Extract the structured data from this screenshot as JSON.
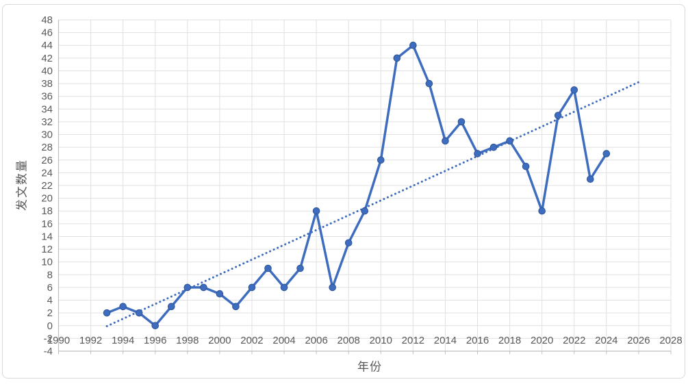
{
  "chart_data": {
    "type": "line",
    "title": "",
    "xlabel": "年份",
    "ylabel": "发文数量",
    "x": [
      1993,
      1994,
      1995,
      1996,
      1997,
      1998,
      1999,
      2000,
      2001,
      2002,
      2003,
      2004,
      2005,
      2006,
      2007,
      2008,
      2009,
      2010,
      2011,
      2012,
      2013,
      2014,
      2015,
      2016,
      2017,
      2018,
      2019,
      2020,
      2021,
      2022,
      2023,
      2024
    ],
    "series": [
      {
        "name": "发文数量",
        "values": [
          2,
          3,
          2,
          0,
          3,
          6,
          6,
          5,
          3,
          6,
          9,
          6,
          9,
          18,
          6,
          13,
          18,
          26,
          42,
          44,
          38,
          29,
          32,
          27,
          28,
          29,
          25,
          18,
          33,
          37,
          23,
          27
        ]
      }
    ],
    "trendline": {
      "type": "linear",
      "style": "dotted",
      "x": [
        1993,
        2026
      ],
      "y": [
        -0.08,
        38.22
      ]
    },
    "xlim": [
      1990,
      2028
    ],
    "ylim": [
      -4,
      48
    ],
    "x_tick_step": 2,
    "y_tick_step": 2,
    "grid": true,
    "legend": "none",
    "colors": {
      "series": "#3E6CBE",
      "marker_fill": "#3E6CBE",
      "marker_edge": "#2E5597",
      "trend": "#3E6CBE",
      "grid": "#E0E0E0",
      "axis": "#BFBFBF",
      "tick_label": "#595959",
      "axis_title": "#595959",
      "border": "#D9D9D9",
      "background": "#FFFFFF"
    }
  }
}
